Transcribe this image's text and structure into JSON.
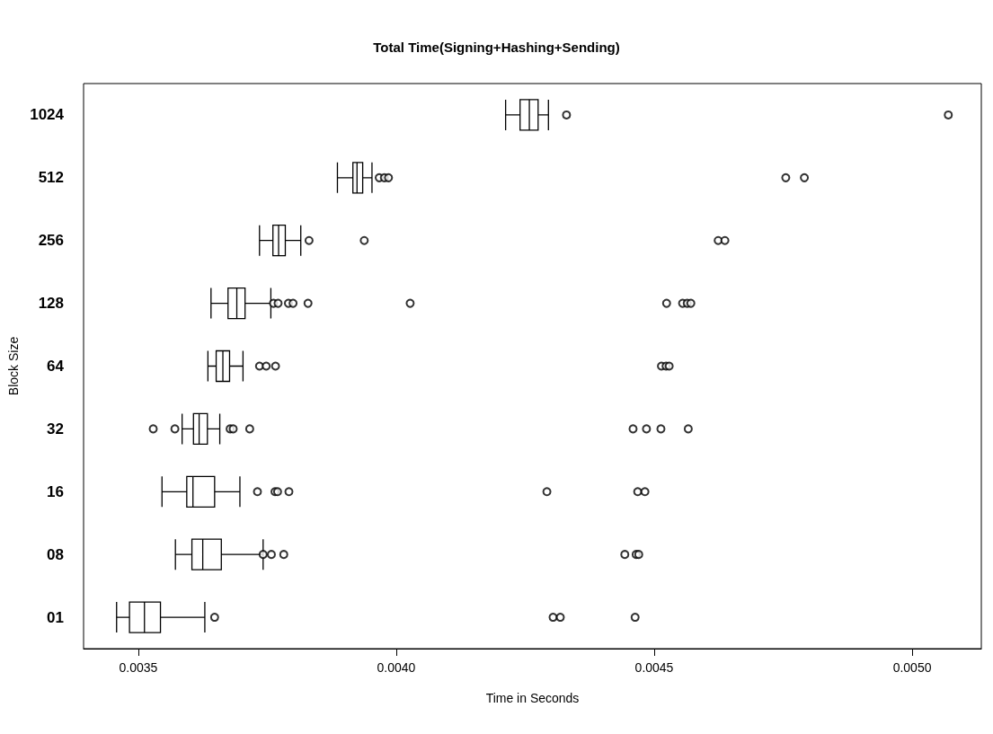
{
  "chart_data": {
    "type": "box",
    "orientation": "horizontal",
    "title": "Total Time(Signing+Hashing+Sending)",
    "xlabel": "Time in Seconds",
    "ylabel": "Block Size",
    "color": "#000000",
    "marker": "circle",
    "grid": false,
    "categories": [
      "1024",
      "512",
      "256",
      "128",
      "64",
      "32",
      "16",
      "08",
      "01"
    ],
    "boxes": [
      {
        "low": 0.004212,
        "q1": 0.00424,
        "median": 0.004258,
        "q3": 0.004275,
        "high": 0.004295,
        "outliers": [
          0.00433,
          0.00507
        ]
      },
      {
        "low": 0.003886,
        "q1": 0.003916,
        "median": 0.003924,
        "q3": 0.003935,
        "high": 0.003953,
        "outliers": [
          0.003967,
          0.003977,
          0.003985,
          0.004755,
          0.004791
        ]
      },
      {
        "low": 0.003735,
        "q1": 0.003761,
        "median": 0.003772,
        "q3": 0.003785,
        "high": 0.003815,
        "outliers": [
          0.003831,
          0.003938,
          0.004624,
          0.004637
        ]
      },
      {
        "low": 0.003641,
        "q1": 0.003674,
        "median": 0.003691,
        "q3": 0.003707,
        "high": 0.003757,
        "outliers": [
          0.003762,
          0.003771,
          0.003791,
          0.0038,
          0.003829,
          0.004027,
          0.004524,
          0.004555,
          0.004564,
          0.004571
        ]
      },
      {
        "low": 0.003635,
        "q1": 0.003651,
        "median": 0.003664,
        "q3": 0.003677,
        "high": 0.003703,
        "outliers": [
          0.003735,
          0.003748,
          0.003766,
          0.004514,
          0.004523,
          0.004529
        ]
      },
      {
        "low": 0.003585,
        "q1": 0.003607,
        "median": 0.003618,
        "q3": 0.003634,
        "high": 0.003658,
        "outliers": [
          0.003529,
          0.003571,
          0.003678,
          0.003684,
          0.003716,
          0.004459,
          0.004485,
          0.004513,
          0.004566
        ]
      },
      {
        "low": 0.003546,
        "q1": 0.003594,
        "median": 0.003606,
        "q3": 0.003648,
        "high": 0.003697,
        "outliers": [
          0.003731,
          0.003765,
          0.00377,
          0.003792,
          0.004292,
          0.004468,
          0.004482
        ]
      },
      {
        "low": 0.003572,
        "q1": 0.003604,
        "median": 0.003625,
        "q3": 0.003661,
        "high": 0.003742,
        "outliers": [
          0.003742,
          0.003758,
          0.003782,
          0.004443,
          0.004465,
          0.00447
        ]
      },
      {
        "low": 0.003458,
        "q1": 0.003483,
        "median": 0.003512,
        "q3": 0.003543,
        "high": 0.003629,
        "outliers": [
          0.003648,
          0.004304,
          0.004318,
          0.004463
        ]
      }
    ],
    "xlim": [
      0.003394,
      0.005134
    ],
    "xticks": [
      {
        "value": 0.0035,
        "label": "0.0035"
      },
      {
        "value": 0.004,
        "label": "0.0040"
      },
      {
        "value": 0.0045,
        "label": "0.0045"
      },
      {
        "value": 0.005,
        "label": "0.0050"
      }
    ]
  }
}
